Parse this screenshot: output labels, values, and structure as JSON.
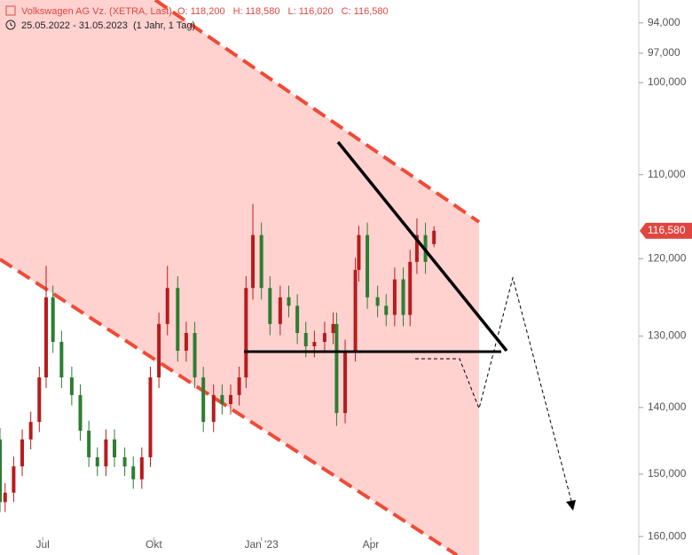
{
  "chart_data": {
    "type": "candlestick",
    "title": "Volkswagen AG Vz. (XETRA, Last)",
    "subtitle": "25.05.2022 - 31.05.2023",
    "period": "(1 Jahr, 1 Tag)",
    "header_values": {
      "labels": [
        "O:",
        "H:",
        "L:",
        "C:"
      ],
      "values": [
        118200,
        118580,
        116020,
        116580
      ],
      "value_labels": [
        "118,200",
        "118,580",
        "116,020",
        "116,580"
      ]
    },
    "last_price": {
      "value": 116580,
      "label": "116,580"
    },
    "log_scale": true,
    "up_color": "#2e7d32",
    "down_color": "#b71c1c",
    "x": [
      0,
      3,
      8,
      13,
      18,
      23,
      27,
      31,
      36,
      42,
      47,
      52,
      57,
      62,
      67,
      73,
      78,
      83,
      88,
      93,
      98,
      104,
      109,
      114,
      119,
      125,
      130,
      135,
      140,
      144,
      148,
      153,
      158,
      164,
      169,
      174,
      179,
      184,
      190,
      195,
      197,
      202,
      208,
      210,
      215,
      221,
      226,
      231,
      236,
      240,
      244,
      249,
      254
    ],
    "open": [
      144700,
      154400,
      152900,
      148800,
      144700,
      142100,
      135700,
      124900,
      130800,
      135700,
      138200,
      143400,
      147400,
      148800,
      144700,
      147400,
      148800,
      150800,
      147400,
      135700,
      128400,
      123700,
      132000,
      129600,
      135700,
      142100,
      138200,
      139500,
      138200,
      135700,
      123700,
      117100,
      123700,
      128400,
      124900,
      126000,
      129600,
      131400,
      130800,
      129600,
      128400,
      140800,
      132000,
      121400,
      117100,
      124900,
      126000,
      127200,
      122600,
      127200,
      120400,
      117100,
      118200
    ],
    "high": [
      156000,
      156000,
      154400,
      150300,
      146200,
      143600,
      137200,
      132300,
      137200,
      139700,
      144900,
      148900,
      150300,
      150300,
      148900,
      150300,
      152300,
      152300,
      148900,
      137200,
      129900,
      133500,
      133500,
      137200,
      143600,
      143600,
      141000,
      141000,
      139700,
      137200,
      125200,
      125200,
      129900,
      129900,
      127500,
      131100,
      132900,
      132900,
      132300,
      131100,
      142700,
      142300,
      133500,
      122900,
      126400,
      127500,
      128700,
      128700,
      128700,
      128700,
      121900,
      121900,
      118580
    ],
    "low": [
      143000,
      151400,
      147300,
      143200,
      140600,
      134200,
      120900,
      123400,
      129300,
      134200,
      136700,
      141900,
      145900,
      143200,
      143200,
      145900,
      147300,
      145900,
      134200,
      126900,
      120900,
      122200,
      128100,
      128100,
      134200,
      136700,
      136700,
      136700,
      134200,
      122200,
      113400,
      115600,
      122200,
      123400,
      123400,
      124500,
      128100,
      129300,
      128100,
      126900,
      126900,
      130500,
      119900,
      116000,
      115600,
      123400,
      124500,
      121100,
      121100,
      118900,
      115100,
      115600,
      116020
    ],
    "close": [
      154400,
      152900,
      148800,
      144700,
      142100,
      135700,
      124900,
      130800,
      135700,
      138200,
      143400,
      147400,
      148800,
      144700,
      147400,
      148800,
      150800,
      147400,
      135700,
      128400,
      123700,
      132000,
      129600,
      135700,
      142100,
      138200,
      139500,
      138200,
      135700,
      123700,
      117100,
      123700,
      128400,
      124900,
      126000,
      129600,
      131400,
      130800,
      129600,
      128400,
      140800,
      132000,
      121400,
      117100,
      124900,
      126000,
      127200,
      122600,
      127200,
      120400,
      117100,
      120400,
      116580
    ],
    "xlim": [
      0,
      405
    ],
    "xticks": [
      {
        "value": 25,
        "label": "Jul"
      },
      {
        "value": 90,
        "label": "Okt"
      },
      {
        "value": 153,
        "label": "Jan '23"
      },
      {
        "value": 217,
        "label": "Apr"
      }
    ],
    "ylim": [
      91800,
      163100
    ],
    "yticks": [
      {
        "value": 160000,
        "label": "160,000"
      },
      {
        "value": 150000,
        "label": "150,000"
      },
      {
        "value": 140000,
        "label": "140,000"
      },
      {
        "value": 130000,
        "label": "130,000"
      },
      {
        "value": 120000,
        "label": "120,000"
      },
      {
        "value": 110000,
        "label": "110,000"
      },
      {
        "value": 100000,
        "label": "100,000"
      },
      {
        "value": 97000,
        "label": "97,000"
      },
      {
        "value": 94000,
        "label": "94,000"
      }
    ]
  }
}
